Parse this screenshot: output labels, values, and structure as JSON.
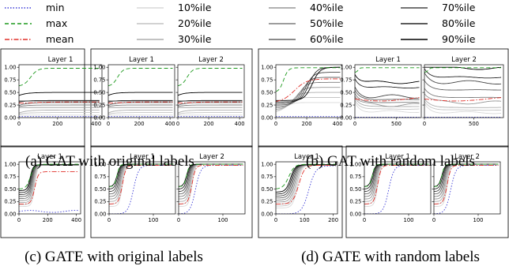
{
  "legend": [
    {
      "label": "min",
      "color": "#3b3bd6",
      "dash": "1.5,2"
    },
    {
      "label": "max",
      "color": "#1f9a1f",
      "dash": "5,3"
    },
    {
      "label": "mean",
      "color": "#e0302a",
      "dash": "6,2,1.5,2"
    },
    {
      "label": "10%ile",
      "color": "#d9d9d9",
      "dash": ""
    },
    {
      "label": "20%ile",
      "color": "#c4c4c4",
      "dash": ""
    },
    {
      "label": "30%ile",
      "color": "#adadad",
      "dash": ""
    },
    {
      "label": "40%ile",
      "color": "#969696",
      "dash": ""
    },
    {
      "label": "50%ile",
      "color": "#7d7d7d",
      "dash": ""
    },
    {
      "label": "60%ile",
      "color": "#636363",
      "dash": ""
    },
    {
      "label": "70%ile",
      "color": "#474747",
      "dash": ""
    },
    {
      "label": "80%ile",
      "color": "#272727",
      "dash": ""
    },
    {
      "label": "90%ile",
      "color": "#000000",
      "dash": ""
    }
  ],
  "captions": {
    "a": "(a) GAT with original labels",
    "b": "(b) GAT with random labels",
    "c": "(c) GATE with original labels",
    "d": "(d) GATE with random labels"
  },
  "chart_data": [
    {
      "id": "a1",
      "type": "line",
      "title": "Layer 1",
      "xlim": [
        0,
        430
      ],
      "ylim": [
        0,
        1.05
      ],
      "xticks": [
        0,
        200,
        400
      ],
      "yticks": [
        "0.00",
        "0.25",
        "0.50",
        "0.75",
        "1.00"
      ],
      "ytick_values": [
        0,
        0.25,
        0.5,
        0.75,
        1.0
      ],
      "style": "gat_orig"
    },
    {
      "id": "a2",
      "type": "line",
      "title": "Layer 1",
      "xlim": [
        0,
        430
      ],
      "ylim": [
        0,
        1.05
      ],
      "xticks": [
        0,
        200,
        400
      ],
      "yticks": [
        "0.00",
        "0.25",
        "0.50",
        "0.75",
        "1.00"
      ],
      "ytick_values": [
        0,
        0.25,
        0.5,
        0.75,
        1.0
      ],
      "style": "gat_orig"
    },
    {
      "id": "a3",
      "type": "line",
      "title": "Layer 2",
      "xlim": [
        0,
        430
      ],
      "ylim": [
        0,
        1.05
      ],
      "xticks": [
        0,
        200,
        400
      ],
      "yticks": [],
      "ytick_values": [
        0,
        0.25,
        0.5,
        0.75,
        1.0
      ],
      "style": "gat_orig2"
    },
    {
      "id": "b1",
      "type": "line",
      "title": "",
      "xlim": [
        0,
        430
      ],
      "ylim": [
        0,
        1.05
      ],
      "xticks": [
        0,
        200,
        400
      ],
      "yticks": [
        "0.00",
        "0.25",
        "0.50",
        "0.75",
        "1.00"
      ],
      "ytick_values": [
        0,
        0.25,
        0.5,
        0.75,
        1.0
      ],
      "style": "gat_rand_single"
    },
    {
      "id": "b2",
      "type": "line",
      "title": "Layer 1",
      "xlim": [
        0,
        800
      ],
      "ylim": [
        0,
        1.05
      ],
      "xticks": [
        0,
        500
      ],
      "yticks": [
        "0.00",
        "0.25",
        "0.50",
        "0.75",
        "1.00"
      ],
      "ytick_values": [
        0,
        0.25,
        0.5,
        0.75,
        1.0
      ],
      "style": "gat_rand1"
    },
    {
      "id": "b3",
      "type": "line",
      "title": "Layer 2",
      "xlim": [
        0,
        800
      ],
      "ylim": [
        0,
        1.05
      ],
      "xticks": [
        0,
        500
      ],
      "yticks": [],
      "ytick_values": [
        0,
        0.25,
        0.5,
        0.75,
        1.0
      ],
      "style": "gat_rand2"
    },
    {
      "id": "c1",
      "type": "line",
      "title": "Layer 1",
      "xlim": [
        0,
        430
      ],
      "ylim": [
        0,
        1.05
      ],
      "xticks": [
        0,
        200,
        400
      ],
      "yticks": [
        "0.00",
        "0.25",
        "0.50",
        "0.75",
        "1.00"
      ],
      "ytick_values": [
        0,
        0.25,
        0.5,
        0.75,
        1.0
      ],
      "style": "gate_orig_single"
    },
    {
      "id": "c2",
      "type": "line",
      "title": "Layer 1",
      "xlim": [
        0,
        150
      ],
      "ylim": [
        0,
        1.05
      ],
      "xticks": [
        0,
        100
      ],
      "yticks": [
        "0.00",
        "0.25",
        "0.50",
        "0.75",
        "1.00"
      ],
      "ytick_values": [
        0,
        0.25,
        0.5,
        0.75,
        1.0
      ],
      "style": "gate_fast1"
    },
    {
      "id": "c3",
      "type": "line",
      "title": "Layer 2",
      "xlim": [
        0,
        150
      ],
      "ylim": [
        0,
        1.05
      ],
      "xticks": [
        0,
        100
      ],
      "yticks": [],
      "ytick_values": [
        0,
        0.25,
        0.5,
        0.75,
        1.0
      ],
      "style": "gate_fast2"
    },
    {
      "id": "d1",
      "type": "line",
      "title": "Layer 1",
      "xlim": [
        0,
        215
      ],
      "ylim": [
        0,
        1.05
      ],
      "xticks": [
        0,
        100,
        200
      ],
      "yticks": [
        "0.00",
        "0.25",
        "0.50",
        "0.75",
        "1.00"
      ],
      "ytick_values": [
        0,
        0.25,
        0.5,
        0.75,
        1.0
      ],
      "style": "gate_rand_single"
    },
    {
      "id": "d2",
      "type": "line",
      "title": "Layer 1",
      "xlim": [
        0,
        150
      ],
      "ylim": [
        0,
        1.05
      ],
      "xticks": [
        0,
        100
      ],
      "yticks": [
        "0.00",
        "0.25",
        "0.50",
        "0.75",
        "1.00"
      ],
      "ytick_values": [
        0,
        0.25,
        0.5,
        0.75,
        1.0
      ],
      "style": "gate_fast1"
    },
    {
      "id": "d3",
      "type": "line",
      "title": "Layer 2",
      "xlim": [
        0,
        150
      ],
      "ylim": [
        0,
        1.05
      ],
      "xticks": [
        0,
        100
      ],
      "yticks": [],
      "ytick_values": [
        0,
        0.25,
        0.5,
        0.75,
        1.0
      ],
      "style": "gate_fast2"
    }
  ]
}
